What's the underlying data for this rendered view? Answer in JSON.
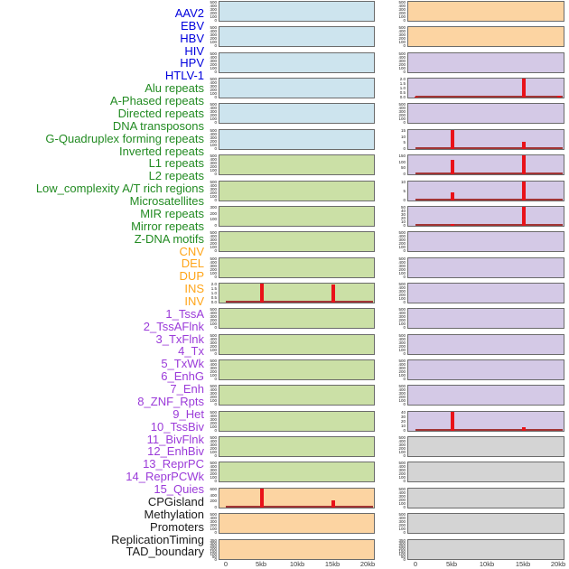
{
  "row_labels": [
    {
      "text": "AAV2",
      "group": "virus"
    },
    {
      "text": "EBV",
      "group": "virus"
    },
    {
      "text": "HBV",
      "group": "virus"
    },
    {
      "text": "HIV",
      "group": "virus"
    },
    {
      "text": "HPV",
      "group": "virus"
    },
    {
      "text": "HTLV-1",
      "group": "virus"
    },
    {
      "text": "Alu repeats",
      "group": "repeat"
    },
    {
      "text": "A-Phased repeats",
      "group": "repeat"
    },
    {
      "text": "Directed repeats",
      "group": "repeat"
    },
    {
      "text": "DNA transposons",
      "group": "repeat"
    },
    {
      "text": "G-Quadruplex forming repeats",
      "group": "repeat"
    },
    {
      "text": "Inverted repeats",
      "group": "repeat"
    },
    {
      "text": "L1 repeats",
      "group": "repeat"
    },
    {
      "text": "L2 repeats",
      "group": "repeat"
    },
    {
      "text": "Low_complexity A/T rich regions",
      "group": "repeat"
    },
    {
      "text": "Microsatellites",
      "group": "repeat"
    },
    {
      "text": "MIR repeats",
      "group": "repeat"
    },
    {
      "text": "Mirror repeats",
      "group": "repeat"
    },
    {
      "text": "Z-DNA motifs",
      "group": "repeat"
    },
    {
      "text": "CNV",
      "group": "sv"
    },
    {
      "text": "DEL",
      "group": "sv"
    },
    {
      "text": "DUP",
      "group": "sv"
    },
    {
      "text": "INS",
      "group": "sv"
    },
    {
      "text": "INV",
      "group": "sv"
    },
    {
      "text": "1_TssA",
      "group": "chromatin"
    },
    {
      "text": "2_TssAFlnk",
      "group": "chromatin"
    },
    {
      "text": "3_TxFlnk",
      "group": "chromatin"
    },
    {
      "text": "4_Tx",
      "group": "chromatin"
    },
    {
      "text": "5_TxWk",
      "group": "chromatin"
    },
    {
      "text": "6_EnhG",
      "group": "chromatin"
    },
    {
      "text": "7_Enh",
      "group": "chromatin"
    },
    {
      "text": "8_ZNF_Rpts",
      "group": "chromatin"
    },
    {
      "text": "9_Het",
      "group": "chromatin"
    },
    {
      "text": "10_TssBiv",
      "group": "chromatin"
    },
    {
      "text": "11_BivFlnk",
      "group": "chromatin"
    },
    {
      "text": "12_EnhBiv",
      "group": "chromatin"
    },
    {
      "text": "13_ReprPC",
      "group": "chromatin"
    },
    {
      "text": "14_ReprPCWk",
      "group": "chromatin"
    },
    {
      "text": "15_Quies",
      "group": "chromatin"
    },
    {
      "text": "CPGisland",
      "group": "other"
    },
    {
      "text": "Methylation",
      "group": "other"
    },
    {
      "text": "Promoters",
      "group": "other"
    },
    {
      "text": "ReplicationTiming",
      "group": "other"
    },
    {
      "text": "TAD_boundary",
      "group": "other"
    }
  ],
  "label_colors": {
    "virus": "#0000dd",
    "repeat": "#228b22",
    "sv": "#ffa519",
    "chromatin": "#9b3bd9",
    "other": "#1a1a1a"
  },
  "panel_colors": {
    "blue": "#cde4ee",
    "green": "#cbe0a6",
    "orange": "#fcd4a2",
    "purple": "#d4c9e6",
    "gray": "#d4d4d4"
  },
  "line_colors": {
    "spike": "#e91219",
    "baseline": "#a23535",
    "border": "#6b6b6b",
    "ytick_text": "#222222",
    "xtick_text": "#3a3a3a"
  },
  "chart_data": {
    "type": "line",
    "xlabel": "",
    "ylabel": "",
    "x_axis": {
      "ticks": [
        "0",
        "5kb",
        "10kb",
        "15kb",
        "20kb"
      ],
      "kb": [
        0,
        5,
        10,
        15,
        20
      ],
      "range_kb": [
        0,
        20
      ]
    },
    "columns": [
      {
        "name": "left-profile-column",
        "panels": [
          {
            "bg": "blue",
            "yticks": [
              "500",
              "400",
              "300",
              "200",
              "100",
              "0"
            ],
            "spikes": [],
            "baseline": false
          },
          {
            "bg": "blue",
            "yticks": [
              "500",
              "400",
              "300",
              "200",
              "100",
              "0"
            ],
            "spikes": [],
            "baseline": false
          },
          {
            "bg": "blue",
            "yticks": [
              "500",
              "400",
              "300",
              "200",
              "100",
              "0"
            ],
            "spikes": [],
            "baseline": false
          },
          {
            "bg": "blue",
            "yticks": [
              "500",
              "400",
              "300",
              "200",
              "100",
              "0"
            ],
            "spikes": [],
            "baseline": false
          },
          {
            "bg": "blue",
            "yticks": [
              "500",
              "400",
              "300",
              "200",
              "100",
              "0"
            ],
            "spikes": [],
            "baseline": false
          },
          {
            "bg": "blue",
            "yticks": [
              "500",
              "400",
              "300",
              "200",
              "100",
              "0"
            ],
            "spikes": [],
            "baseline": false
          },
          {
            "bg": "green",
            "yticks": [
              "500",
              "400",
              "300",
              "200",
              "100",
              "0"
            ],
            "spikes": [],
            "baseline": false
          },
          {
            "bg": "green",
            "yticks": [
              "500",
              "400",
              "300",
              "200",
              "100",
              "0"
            ],
            "spikes": [],
            "baseline": false
          },
          {
            "bg": "green",
            "yticks": [
              "300",
              "200",
              "100",
              "0"
            ],
            "spikes": [],
            "baseline": false
          },
          {
            "bg": "green",
            "yticks": [
              "500",
              "400",
              "300",
              "200",
              "100",
              "0"
            ],
            "spikes": [],
            "baseline": false
          },
          {
            "bg": "green",
            "yticks": [
              "500",
              "400",
              "300",
              "200",
              "100",
              "0"
            ],
            "spikes": [],
            "baseline": false
          },
          {
            "bg": "green",
            "yticks": [
              "2.0",
              "1.5",
              "1.0",
              "0.5",
              "0.0"
            ],
            "spikes": [
              {
                "kb": 5,
                "h": 1.0
              },
              {
                "kb": 15,
                "h": 0.93
              }
            ],
            "baseline": true
          },
          {
            "bg": "green",
            "yticks": [
              "500",
              "400",
              "300",
              "200",
              "100",
              "0"
            ],
            "spikes": [],
            "baseline": false
          },
          {
            "bg": "green",
            "yticks": [
              "500",
              "400",
              "300",
              "200",
              "100",
              "0"
            ],
            "spikes": [],
            "baseline": false
          },
          {
            "bg": "green",
            "yticks": [
              "500",
              "400",
              "300",
              "200",
              "100",
              "0"
            ],
            "spikes": [],
            "baseline": false
          },
          {
            "bg": "green",
            "yticks": [
              "500",
              "400",
              "300",
              "200",
              "100",
              "0"
            ],
            "spikes": [],
            "baseline": false
          },
          {
            "bg": "green",
            "yticks": [
              "500",
              "400",
              "300",
              "200",
              "100",
              "0"
            ],
            "spikes": [],
            "baseline": false
          },
          {
            "bg": "green",
            "yticks": [
              "500",
              "400",
              "300",
              "200",
              "100",
              "0"
            ],
            "spikes": [],
            "baseline": false
          },
          {
            "bg": "green",
            "yticks": [
              "500",
              "400",
              "300",
              "200",
              "100",
              "0"
            ],
            "spikes": [],
            "baseline": false
          },
          {
            "bg": "orange",
            "yticks": [
              "600",
              "400",
              "200",
              "0"
            ],
            "spikes": [
              {
                "kb": 5,
                "h": 1.0
              },
              {
                "kb": 15,
                "h": 0.38
              }
            ],
            "baseline": true
          },
          {
            "bg": "orange",
            "yticks": [
              "500",
              "400",
              "300",
              "200",
              "100",
              "0"
            ],
            "spikes": [],
            "baseline": false
          },
          {
            "bg": "orange",
            "yticks": [
              "350",
              "300",
              "250",
              "200",
              "150",
              "100",
              "50",
              "0"
            ],
            "spikes": [],
            "baseline": false
          }
        ]
      },
      {
        "name": "right-profile-column",
        "panels": [
          {
            "bg": "orange",
            "yticks": [
              "500",
              "400",
              "300",
              "200",
              "100",
              "0"
            ],
            "spikes": [],
            "baseline": false
          },
          {
            "bg": "orange",
            "yticks": [
              "500",
              "400",
              "300",
              "200",
              "100",
              "0"
            ],
            "spikes": [],
            "baseline": false
          },
          {
            "bg": "purple",
            "yticks": [
              "500",
              "400",
              "300",
              "200",
              "100",
              "0"
            ],
            "spikes": [],
            "baseline": false
          },
          {
            "bg": "purple",
            "yticks": [
              "2.0",
              "1.5",
              "1.0",
              "0.5",
              "0.0"
            ],
            "spikes": [
              {
                "kb": 0,
                "h": 0.07
              },
              {
                "kb": 15,
                "h": 1.0
              },
              {
                "kb": 20,
                "h": 0.1
              }
            ],
            "baseline": true
          },
          {
            "bg": "purple",
            "yticks": [
              "500",
              "400",
              "300",
              "200",
              "100",
              "0"
            ],
            "spikes": [],
            "baseline": false
          },
          {
            "bg": "purple",
            "yticks": [
              "15",
              "10",
              "5",
              "0"
            ],
            "spikes": [
              {
                "kb": 5,
                "h": 1.0
              },
              {
                "kb": 15,
                "h": 0.4
              }
            ],
            "baseline": true
          },
          {
            "bg": "purple",
            "yticks": [
              "150",
              "100",
              "50",
              "0"
            ],
            "spikes": [
              {
                "kb": 5,
                "h": 0.78
              },
              {
                "kb": 15,
                "h": 1.0
              }
            ],
            "baseline": true
          },
          {
            "bg": "purple",
            "yticks": [
              "10",
              "5",
              "0"
            ],
            "spikes": [
              {
                "kb": 5,
                "h": 0.42
              },
              {
                "kb": 15,
                "h": 1.0
              }
            ],
            "baseline": true
          },
          {
            "bg": "purple",
            "yticks": [
              "50",
              "40",
              "30",
              "20",
              "10",
              "0"
            ],
            "spikes": [
              {
                "kb": 5,
                "h": 0.08
              },
              {
                "kb": 15,
                "h": 1.0
              }
            ],
            "baseline": true
          },
          {
            "bg": "purple",
            "yticks": [
              "500",
              "400",
              "300",
              "200",
              "100",
              "0"
            ],
            "spikes": [],
            "baseline": false
          },
          {
            "bg": "purple",
            "yticks": [
              "500",
              "400",
              "300",
              "200",
              "100",
              "0"
            ],
            "spikes": [],
            "baseline": false
          },
          {
            "bg": "purple",
            "yticks": [
              "500",
              "400",
              "300",
              "200",
              "100",
              "0"
            ],
            "spikes": [],
            "baseline": false
          },
          {
            "bg": "purple",
            "yticks": [
              "500",
              "400",
              "300",
              "200",
              "100",
              "0"
            ],
            "spikes": [],
            "baseline": false
          },
          {
            "bg": "purple",
            "yticks": [
              "500",
              "400",
              "300",
              "200",
              "100",
              "0"
            ],
            "spikes": [],
            "baseline": false
          },
          {
            "bg": "purple",
            "yticks": [
              "500",
              "400",
              "300",
              "200",
              "100",
              "0"
            ],
            "spikes": [],
            "baseline": false
          },
          {
            "bg": "purple",
            "yticks": [
              "500",
              "400",
              "300",
              "200",
              "100",
              "0"
            ],
            "spikes": [],
            "baseline": false
          },
          {
            "bg": "purple",
            "yticks": [
              "40",
              "30",
              "20",
              "10",
              "0"
            ],
            "spikes": [
              {
                "kb": 5,
                "h": 1.0
              },
              {
                "kb": 15,
                "h": 0.18
              }
            ],
            "baseline": true
          },
          {
            "bg": "gray",
            "yticks": [
              "500",
              "400",
              "300",
              "200",
              "100",
              "0"
            ],
            "spikes": [],
            "baseline": false
          },
          {
            "bg": "gray",
            "yticks": [
              "500",
              "400",
              "300",
              "200",
              "100",
              "0"
            ],
            "spikes": [],
            "baseline": false
          },
          {
            "bg": "gray",
            "yticks": [
              "500",
              "400",
              "300",
              "200",
              "100",
              "0"
            ],
            "spikes": [],
            "baseline": false
          },
          {
            "bg": "gray",
            "yticks": [
              "500",
              "400",
              "300",
              "200",
              "100",
              "0"
            ],
            "spikes": [],
            "baseline": false
          },
          {
            "bg": "gray",
            "yticks": [
              "350",
              "300",
              "250",
              "200",
              "150",
              "100",
              "50",
              "0"
            ],
            "spikes": [],
            "baseline": false
          }
        ]
      }
    ]
  }
}
